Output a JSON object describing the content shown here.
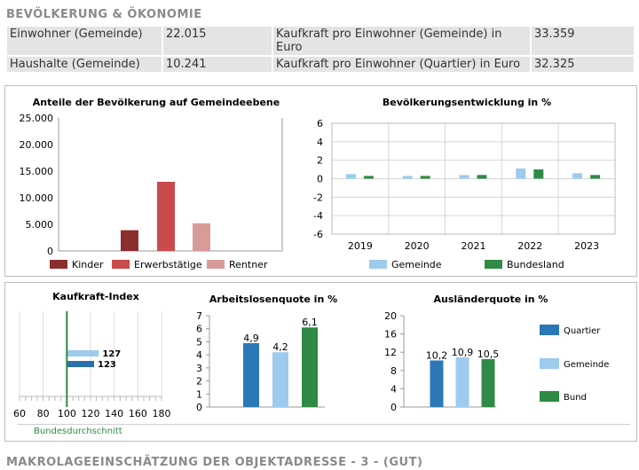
{
  "section_title": "BEVÖLKERUNG & ÖKONOMIE",
  "facts": [
    {
      "label_a": "Einwohner (Gemeinde)",
      "value_a": "22.015",
      "label_b": "Kaufkraft pro Einwohner (Gemeinde) in Euro",
      "value_b": "33.359"
    },
    {
      "label_a": "Haushalte (Gemeinde)",
      "value_a": "10.241",
      "label_b": "Kaufkraft pro Einwohner (Quartier) in Euro",
      "value_b": "32.325"
    }
  ],
  "footer_title": "MAKROLAGEEINSCHÄTZUNG DER OBJEKTADRESSE - 3 - (GUT)",
  "bundes_label": "Bundesdurchschnitt",
  "chart_data": [
    {
      "type": "bar",
      "title": "Anteile der Bevölkerung auf Gemeindeebene",
      "categories": [
        "Kinder",
        "Erwerbstätige",
        "Rentner"
      ],
      "values": [
        3900,
        13000,
        5200
      ],
      "ylim": [
        0,
        25000
      ],
      "yticks": [
        "25.000",
        "20.000",
        "15.000",
        "10.000",
        "5.000",
        "0"
      ],
      "colors": [
        "#8b2e2e",
        "#c94b4b",
        "#d99a9a"
      ],
      "legend_placement": "bottom"
    },
    {
      "type": "bar",
      "title": "Bevölkerungsentwicklung in %",
      "categories": [
        "2019",
        "2020",
        "2021",
        "2022",
        "2023"
      ],
      "series": [
        {
          "name": "Gemeinde",
          "values": [
            0.5,
            0.3,
            0.4,
            1.1,
            0.6
          ],
          "color": "#9ccbee"
        },
        {
          "name": "Bundesland",
          "values": [
            0.3,
            0.3,
            0.4,
            1.0,
            0.4
          ],
          "color": "#2f8a45"
        }
      ],
      "ylim": [
        -6,
        6
      ],
      "yticks": [
        "6",
        "4",
        "2",
        "0",
        "-2",
        "-4",
        "-6"
      ],
      "grid": true,
      "legend_placement": "bottom"
    },
    {
      "type": "bar",
      "title": "Kaufkraft-Index",
      "orientation": "horizontal",
      "values": [
        127,
        123
      ],
      "labels": [
        "127",
        "123"
      ],
      "colors": [
        "#9ccbee",
        "#2a6fb0"
      ],
      "xlim": [
        60,
        180
      ],
      "xticks": [
        "60",
        "80",
        "100",
        "120",
        "140",
        "160",
        "180"
      ],
      "reference": 100,
      "reference_color": "#2f8a45"
    },
    {
      "type": "bar",
      "title": "Arbeitslosenquote in %",
      "values": [
        4.9,
        4.2,
        6.1
      ],
      "labels": [
        "4,9",
        "4,2",
        "6,1"
      ],
      "colors": [
        "#2a78b8",
        "#9ccbee",
        "#2f8a45"
      ],
      "ylim": [
        0,
        7
      ],
      "yticks": [
        "7",
        "6",
        "5",
        "4",
        "3",
        "2",
        "1",
        "0"
      ]
    },
    {
      "type": "bar",
      "title": "Ausländerquote in %",
      "values": [
        10.2,
        10.9,
        10.5
      ],
      "labels": [
        "10,2",
        "10,9",
        "10,5"
      ],
      "colors": [
        "#2a78b8",
        "#9ccbee",
        "#2f8a45"
      ],
      "ylim": [
        0,
        20
      ],
      "yticks": [
        "20",
        "16",
        "12",
        "8",
        "4",
        "0"
      ],
      "legend": [
        "Quartier",
        "Gemeinde",
        "Bund"
      ],
      "legend_placement": "right"
    }
  ]
}
